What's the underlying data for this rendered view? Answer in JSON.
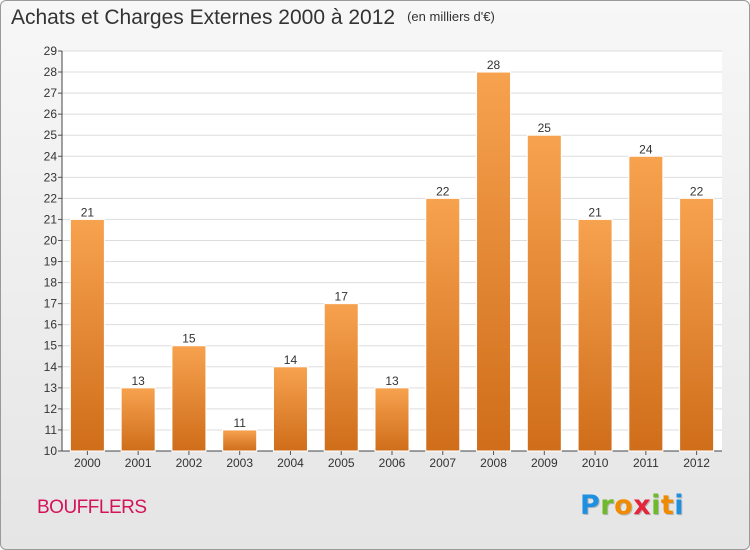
{
  "title": "Achats et Charges Externes 2000 à 2012",
  "subtitle": "(en milliers d'€)",
  "commune": "BOUFFLERS",
  "logo": {
    "letters": [
      "P",
      "r",
      "o",
      "x",
      "i",
      "t",
      "i"
    ],
    "colors": [
      "#1f8fe0",
      "#6fba2c",
      "#f08a00",
      "#e5253a",
      "#6fba2c",
      "#f08a00",
      "#1f8fe0"
    ]
  },
  "colors": {
    "bar_top": "#f7a24f",
    "bar_bottom": "#cf6d1a",
    "commune": "#d4145a"
  },
  "chart_data": {
    "type": "bar",
    "categories": [
      "2000",
      "2001",
      "2002",
      "2003",
      "2004",
      "2005",
      "2006",
      "2007",
      "2008",
      "2009",
      "2010",
      "2011",
      "2012"
    ],
    "values": [
      21,
      13,
      15,
      11,
      14,
      17,
      13,
      22,
      28,
      25,
      21,
      24,
      22
    ],
    "ylim": [
      10,
      29
    ],
    "yticks": [
      10,
      11,
      12,
      13,
      14,
      15,
      16,
      17,
      18,
      19,
      20,
      21,
      22,
      23,
      24,
      25,
      26,
      27,
      28,
      29
    ],
    "grid": true,
    "data_labels": true
  }
}
